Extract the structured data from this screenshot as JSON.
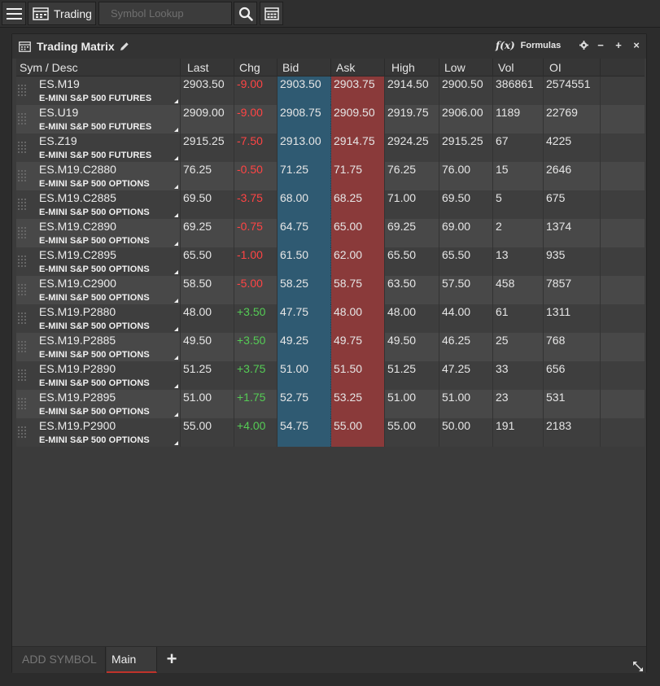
{
  "toolbar": {
    "menu_icon": "hamburger-icon",
    "tab_icon": "grid-window-icon",
    "tab_label": "Trading",
    "search_placeholder": "Symbol Lookup",
    "search_icon": "search-icon",
    "calendar_icon": "calendar-icon"
  },
  "panel": {
    "title": "Trading Matrix",
    "formulas_label": "Formulas",
    "formulas_icon": "fx-icon",
    "controls": [
      "gear-icon",
      "minimize-icon",
      "maximize-icon",
      "close-icon"
    ]
  },
  "columns": [
    "Sym / Desc",
    "Last",
    "Chg",
    "Bid",
    "Ask",
    "High",
    "Low",
    "Vol",
    "OI"
  ],
  "rows": [
    {
      "sym": "ES.M19",
      "desc": "E-MINI S&P 500 FUTURES",
      "last": "2903.50",
      "chg": "-9.00",
      "bid": "2903.50",
      "ask": "2903.75",
      "high": "2914.50",
      "low": "2900.50",
      "vol": "386861",
      "oi": "2574551"
    },
    {
      "sym": "ES.U19",
      "desc": "E-MINI S&P 500 FUTURES",
      "last": "2909.00",
      "chg": "-9.00",
      "bid": "2908.75",
      "ask": "2909.50",
      "high": "2919.75",
      "low": "2906.00",
      "vol": "1189",
      "oi": "22769"
    },
    {
      "sym": "ES.Z19",
      "desc": "E-MINI S&P 500 FUTURES",
      "last": "2915.25",
      "chg": "-7.50",
      "bid": "2913.00",
      "ask": "2914.75",
      "high": "2924.25",
      "low": "2915.25",
      "vol": "67",
      "oi": "4225"
    },
    {
      "sym": "ES.M19.C2880",
      "desc": "E-MINI S&P 500 OPTIONS",
      "last": "76.25",
      "chg": "-0.50",
      "bid": "71.25",
      "ask": "71.75",
      "high": "76.25",
      "low": "76.00",
      "vol": "15",
      "oi": "2646"
    },
    {
      "sym": "ES.M19.C2885",
      "desc": "E-MINI S&P 500 OPTIONS",
      "last": "69.50",
      "chg": "-3.75",
      "bid": "68.00",
      "ask": "68.25",
      "high": "71.00",
      "low": "69.50",
      "vol": "5",
      "oi": "675"
    },
    {
      "sym": "ES.M19.C2890",
      "desc": "E-MINI S&P 500 OPTIONS",
      "last": "69.25",
      "chg": "-0.75",
      "bid": "64.75",
      "ask": "65.00",
      "high": "69.25",
      "low": "69.00",
      "vol": "2",
      "oi": "1374"
    },
    {
      "sym": "ES.M19.C2895",
      "desc": "E-MINI S&P 500 OPTIONS",
      "last": "65.50",
      "chg": "-1.00",
      "bid": "61.50",
      "ask": "62.00",
      "high": "65.50",
      "low": "65.50",
      "vol": "13",
      "oi": "935"
    },
    {
      "sym": "ES.M19.C2900",
      "desc": "E-MINI S&P 500 OPTIONS",
      "last": "58.50",
      "chg": "-5.00",
      "bid": "58.25",
      "ask": "58.75",
      "high": "63.50",
      "low": "57.50",
      "vol": "458",
      "oi": "7857"
    },
    {
      "sym": "ES.M19.P2880",
      "desc": "E-MINI S&P 500 OPTIONS",
      "last": "48.00",
      "chg": "+3.50",
      "bid": "47.75",
      "ask": "48.00",
      "high": "48.00",
      "low": "44.00",
      "vol": "61",
      "oi": "1311"
    },
    {
      "sym": "ES.M19.P2885",
      "desc": "E-MINI S&P 500 OPTIONS",
      "last": "49.50",
      "chg": "+3.50",
      "bid": "49.25",
      "ask": "49.75",
      "high": "49.50",
      "low": "46.25",
      "vol": "25",
      "oi": "768"
    },
    {
      "sym": "ES.M19.P2890",
      "desc": "E-MINI S&P 500 OPTIONS",
      "last": "51.25",
      "chg": "+3.75",
      "bid": "51.00",
      "ask": "51.50",
      "high": "51.25",
      "low": "47.25",
      "vol": "33",
      "oi": "656"
    },
    {
      "sym": "ES.M19.P2895",
      "desc": "E-MINI S&P 500 OPTIONS",
      "last": "51.00",
      "chg": "+1.75",
      "bid": "52.75",
      "ask": "53.25",
      "high": "51.00",
      "low": "51.00",
      "vol": "23",
      "oi": "531"
    },
    {
      "sym": "ES.M19.P2900",
      "desc": "E-MINI S&P 500 OPTIONS",
      "last": "55.00",
      "chg": "+4.00",
      "bid": "54.75",
      "ask": "55.00",
      "high": "55.00",
      "low": "50.00",
      "vol": "191",
      "oi": "2183"
    }
  ],
  "colors": {
    "bid_bg": "#2f5a72",
    "ask_bg": "#8a3a3a",
    "negative": "#ff4444",
    "positive": "#55cc55",
    "active_tab_underline": "#c0332b"
  },
  "footer": {
    "add_symbol_label": "ADD SYMBOL",
    "tab_label": "Main",
    "add_tab_label": "+",
    "resize_icon": "resize-icon"
  }
}
